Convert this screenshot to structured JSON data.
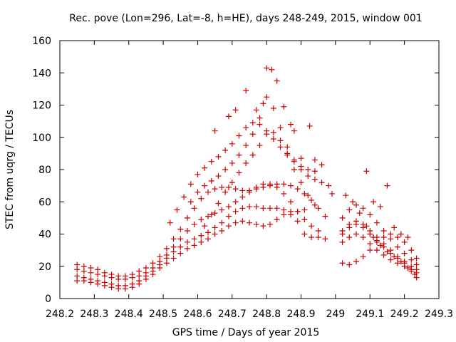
{
  "chart_data": {
    "type": "scatter",
    "title": "Rec. pove (Lon=296, Lat=-8, h=HE), days 248-249, 2015, window 001",
    "xlabel": "GPS time / Days of year 2015",
    "ylabel": "STEC from uqrg / TECUs",
    "xlim": [
      248.2,
      249.3
    ],
    "ylim": [
      0,
      160
    ],
    "xticks": [
      "248.2",
      "248.3",
      "248.4",
      "248.5",
      "248.6",
      "248.7",
      "248.8",
      "248.9",
      "249",
      "249.1",
      "249.2",
      "249.3"
    ],
    "yticks": [
      "0",
      "20",
      "40",
      "60",
      "80",
      "100",
      "120",
      "140",
      "160"
    ],
    "grid": false,
    "marker": "plus",
    "color": "#cc0000",
    "series": [
      {
        "points": [
          [
            248.25,
            21
          ],
          [
            248.27,
            20
          ],
          [
            248.29,
            19
          ],
          [
            248.31,
            18
          ],
          [
            248.33,
            16
          ],
          [
            248.35,
            15
          ],
          [
            248.37,
            14
          ],
          [
            248.39,
            14
          ],
          [
            248.41,
            15
          ],
          [
            248.43,
            17
          ],
          [
            248.45,
            19
          ],
          [
            248.47,
            22
          ],
          [
            248.49,
            26
          ],
          [
            248.51,
            31
          ],
          [
            248.53,
            37
          ],
          [
            248.55,
            43
          ],
          [
            248.57,
            50
          ],
          [
            248.59,
            56
          ],
          [
            248.61,
            62
          ],
          [
            248.63,
            66
          ],
          [
            248.65,
            68
          ],
          [
            248.67,
            69
          ],
          [
            248.69,
            69
          ],
          [
            248.71,
            68
          ],
          [
            248.73,
            67
          ],
          [
            248.75,
            67
          ],
          [
            248.77,
            68
          ],
          [
            248.79,
            69
          ],
          [
            248.81,
            70
          ],
          [
            248.83,
            71
          ],
          [
            248.85,
            71
          ],
          [
            248.87,
            70
          ],
          [
            248.89,
            68
          ],
          [
            248.91,
            65
          ],
          [
            248.93,
            61
          ],
          [
            248.95,
            56
          ],
          [
            248.97,
            51
          ],
          [
            248.25,
            18
          ],
          [
            248.27,
            17
          ],
          [
            248.29,
            16
          ],
          [
            248.31,
            15
          ],
          [
            248.33,
            14
          ],
          [
            248.35,
            13
          ],
          [
            248.37,
            12
          ],
          [
            248.39,
            12
          ],
          [
            248.41,
            13
          ],
          [
            248.43,
            14
          ],
          [
            248.45,
            16
          ],
          [
            248.47,
            19
          ],
          [
            248.49,
            23
          ],
          [
            248.51,
            27
          ],
          [
            248.53,
            32
          ],
          [
            248.55,
            37
          ],
          [
            248.57,
            42
          ],
          [
            248.59,
            46
          ],
          [
            248.61,
            49
          ],
          [
            248.63,
            51
          ],
          [
            248.65,
            53
          ],
          [
            248.67,
            55
          ],
          [
            248.69,
            57
          ],
          [
            248.71,
            60
          ],
          [
            248.73,
            63
          ],
          [
            248.75,
            66
          ],
          [
            248.77,
            69
          ],
          [
            248.79,
            71
          ],
          [
            248.81,
            71
          ],
          [
            248.83,
            69
          ],
          [
            248.85,
            65
          ],
          [
            248.87,
            60
          ],
          [
            248.89,
            54
          ],
          [
            248.91,
            49
          ],
          [
            248.93,
            45
          ],
          [
            248.95,
            42
          ],
          [
            248.25,
            14
          ],
          [
            248.27,
            13
          ],
          [
            248.29,
            12
          ],
          [
            248.31,
            11
          ],
          [
            248.33,
            10
          ],
          [
            248.35,
            9
          ],
          [
            248.37,
            8
          ],
          [
            248.39,
            8
          ],
          [
            248.41,
            9
          ],
          [
            248.43,
            11
          ],
          [
            248.45,
            14
          ],
          [
            248.47,
            17
          ],
          [
            248.49,
            21
          ],
          [
            248.51,
            25
          ],
          [
            248.53,
            29
          ],
          [
            248.55,
            32
          ],
          [
            248.57,
            35
          ],
          [
            248.59,
            37
          ],
          [
            248.61,
            39
          ],
          [
            248.63,
            41
          ],
          [
            248.65,
            44
          ],
          [
            248.67,
            47
          ],
          [
            248.69,
            51
          ],
          [
            248.71,
            54
          ],
          [
            248.73,
            56
          ],
          [
            248.75,
            57
          ],
          [
            248.77,
            57
          ],
          [
            248.79,
            56
          ],
          [
            248.81,
            56
          ],
          [
            248.83,
            56
          ],
          [
            248.85,
            55
          ],
          [
            248.87,
            54
          ],
          [
            248.89,
            54
          ],
          [
            248.91,
            55
          ],
          [
            248.25,
            11
          ],
          [
            248.27,
            11
          ],
          [
            248.29,
            10
          ],
          [
            248.31,
            9
          ],
          [
            248.33,
            8
          ],
          [
            248.35,
            7
          ],
          [
            248.37,
            6
          ],
          [
            248.39,
            6
          ],
          [
            248.41,
            7
          ],
          [
            248.43,
            9
          ],
          [
            248.45,
            12
          ],
          [
            248.47,
            15
          ],
          [
            248.49,
            19
          ],
          [
            248.51,
            22
          ],
          [
            248.53,
            25
          ],
          [
            248.55,
            28
          ],
          [
            248.57,
            31
          ],
          [
            248.59,
            33
          ],
          [
            248.61,
            35
          ],
          [
            248.63,
            37
          ],
          [
            248.65,
            40
          ],
          [
            248.67,
            42
          ],
          [
            248.69,
            45
          ],
          [
            248.71,
            47
          ],
          [
            248.73,
            48
          ],
          [
            248.75,
            47
          ],
          [
            248.77,
            46
          ],
          [
            248.79,
            45
          ],
          [
            248.81,
            46
          ],
          [
            248.83,
            49
          ],
          [
            248.85,
            52
          ],
          [
            248.87,
            52
          ],
          [
            248.89,
            48
          ],
          [
            248.91,
            40
          ],
          [
            248.93,
            38
          ],
          [
            248.95,
            38
          ],
          [
            248.97,
            37
          ],
          [
            248.52,
            47
          ],
          [
            248.54,
            55
          ],
          [
            248.56,
            63
          ],
          [
            248.58,
            71
          ],
          [
            248.6,
            77
          ],
          [
            248.62,
            81
          ],
          [
            248.64,
            85
          ],
          [
            248.66,
            88
          ],
          [
            248.68,
            92
          ],
          [
            248.7,
            96
          ],
          [
            248.72,
            101
          ],
          [
            248.74,
            106
          ],
          [
            248.76,
            109
          ],
          [
            248.78,
            108
          ],
          [
            248.8,
            104
          ],
          [
            248.82,
            99
          ],
          [
            248.84,
            94
          ],
          [
            248.86,
            89
          ],
          [
            248.88,
            85
          ],
          [
            248.9,
            82
          ],
          [
            248.92,
            80
          ],
          [
            248.94,
            79
          ],
          [
            248.58,
            60
          ],
          [
            248.6,
            66
          ],
          [
            248.62,
            70
          ],
          [
            248.64,
            73
          ],
          [
            248.66,
            76
          ],
          [
            248.68,
            80
          ],
          [
            248.7,
            84
          ],
          [
            248.72,
            89
          ],
          [
            248.74,
            95
          ],
          [
            248.76,
            102
          ],
          [
            248.78,
            112
          ],
          [
            248.8,
            125
          ],
          [
            248.82,
            118
          ],
          [
            248.84,
            106
          ],
          [
            248.86,
            94
          ],
          [
            248.88,
            86
          ],
          [
            248.9,
            80
          ],
          [
            248.92,
            76
          ],
          [
            248.94,
            74
          ],
          [
            248.96,
            72
          ],
          [
            248.98,
            70
          ],
          [
            248.62,
            45
          ],
          [
            248.64,
            52
          ],
          [
            248.66,
            59
          ],
          [
            248.68,
            66
          ],
          [
            248.7,
            72
          ],
          [
            248.72,
            78
          ],
          [
            248.74,
            84
          ],
          [
            248.76,
            89
          ],
          [
            248.78,
            95
          ],
          [
            248.8,
            102
          ],
          [
            248.82,
            103
          ],
          [
            248.84,
            98
          ],
          [
            248.86,
            90
          ],
          [
            248.88,
            80
          ],
          [
            248.9,
            72
          ],
          [
            248.92,
            64
          ],
          [
            248.94,
            58
          ],
          [
            248.65,
            104
          ],
          [
            248.69,
            113
          ],
          [
            248.71,
            117
          ],
          [
            248.74,
            129
          ],
          [
            248.77,
            117
          ],
          [
            248.79,
            121
          ],
          [
            248.8,
            143
          ],
          [
            248.815,
            142
          ],
          [
            248.83,
            135
          ],
          [
            248.85,
            119
          ],
          [
            248.87,
            108
          ],
          [
            248.88,
            104
          ],
          [
            248.9,
            87
          ],
          [
            248.925,
            107
          ],
          [
            248.94,
            86
          ],
          [
            248.96,
            83
          ],
          [
            248.99,
            65
          ],
          [
            249.02,
            22
          ],
          [
            249.04,
            21
          ],
          [
            249.06,
            23
          ],
          [
            249.08,
            26
          ],
          [
            249.1,
            30
          ],
          [
            249.12,
            35
          ],
          [
            249.14,
            38
          ],
          [
            249.16,
            40
          ],
          [
            249.18,
            38
          ],
          [
            249.2,
            35
          ],
          [
            249.22,
            30
          ],
          [
            249.235,
            25
          ],
          [
            249.02,
            35
          ],
          [
            249.04,
            38
          ],
          [
            249.06,
            40
          ],
          [
            249.08,
            38
          ],
          [
            249.1,
            34
          ],
          [
            249.12,
            30
          ],
          [
            249.14,
            27
          ],
          [
            249.16,
            24
          ],
          [
            249.18,
            22
          ],
          [
            249.2,
            20
          ],
          [
            249.22,
            18
          ],
          [
            249.235,
            16
          ],
          [
            249.02,
            42
          ],
          [
            249.04,
            46
          ],
          [
            249.06,
            48
          ],
          [
            249.08,
            46
          ],
          [
            249.1,
            42
          ],
          [
            249.12,
            38
          ],
          [
            249.14,
            34
          ],
          [
            249.16,
            30
          ],
          [
            249.18,
            26
          ],
          [
            249.2,
            23
          ],
          [
            249.22,
            20
          ],
          [
            249.235,
            18
          ],
          [
            249.02,
            50
          ],
          [
            249.04,
            55
          ],
          [
            249.06,
            58
          ],
          [
            249.08,
            56
          ],
          [
            249.1,
            52
          ],
          [
            249.12,
            47
          ],
          [
            249.14,
            42
          ],
          [
            249.16,
            37
          ],
          [
            249.18,
            32
          ],
          [
            249.2,
            28
          ],
          [
            249.22,
            24
          ],
          [
            249.235,
            21
          ],
          [
            249.03,
            64
          ],
          [
            249.05,
            60
          ],
          [
            249.07,
            53
          ],
          [
            249.09,
            45
          ],
          [
            249.11,
            38
          ],
          [
            249.13,
            33
          ],
          [
            249.15,
            29
          ],
          [
            249.17,
            26
          ],
          [
            249.19,
            23
          ],
          [
            249.21,
            19
          ],
          [
            249.23,
            15
          ],
          [
            249.02,
            40
          ],
          [
            249.04,
            44
          ],
          [
            249.06,
            46
          ],
          [
            249.08,
            44
          ],
          [
            249.1,
            40
          ],
          [
            249.12,
            36
          ],
          [
            249.14,
            32
          ],
          [
            249.16,
            28
          ],
          [
            249.18,
            25
          ],
          [
            249.2,
            22
          ],
          [
            249.22,
            17
          ],
          [
            249.235,
            13
          ],
          [
            249.09,
            79
          ],
          [
            249.11,
            60
          ],
          [
            249.13,
            57
          ],
          [
            249.15,
            70
          ],
          [
            249.17,
            44
          ],
          [
            249.19,
            40
          ],
          [
            249.21,
            38
          ]
        ]
      }
    ]
  }
}
